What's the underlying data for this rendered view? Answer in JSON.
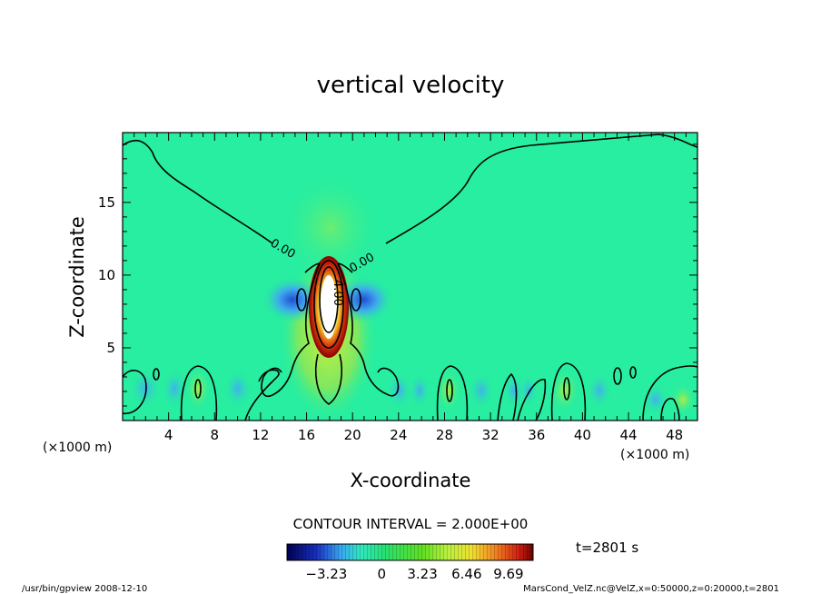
{
  "chart_data": {
    "type": "contour",
    "title": "vertical velocity",
    "xlabel": "X-coordinate",
    "ylabel": "Z-coordinate",
    "x_unit": "(×1000 m)",
    "y_unit": "(×1000 m)",
    "xlim": [
      0,
      50
    ],
    "ylim": [
      0,
      19.8
    ],
    "x_ticks": [
      4,
      8,
      12,
      16,
      20,
      24,
      28,
      32,
      36,
      40,
      44,
      48
    ],
    "y_ticks": [
      5,
      10,
      15
    ],
    "contour_labels": [
      {
        "text": "0.00",
        "x": 13.3,
        "z": 11.5
      },
      {
        "text": "0.00",
        "x": 22.3,
        "z": 11.5
      },
      {
        "text": "4.00",
        "x": 18.8,
        "z": 8.4
      }
    ],
    "contour_interval": "CONTOUR INTERVAL = 2.000E+00",
    "colorbar_ticks": [
      "−3.23",
      "0",
      "3.23",
      "6.46",
      "9.69"
    ],
    "time_label": "t=2801 s",
    "colors": {
      "background": "#27eea0",
      "positive": "#b8f23a",
      "strong_positive": "#f2d020",
      "max": "#ffffff",
      "negative": "#3aa0f0",
      "strong_negative": "#1840c8"
    }
  },
  "footer": {
    "left": "/usr/bin/gpview   2008-12-10",
    "right": "MarsCond_VelZ.nc@VelZ,x=0:50000,z=0:20000,t=2801"
  }
}
